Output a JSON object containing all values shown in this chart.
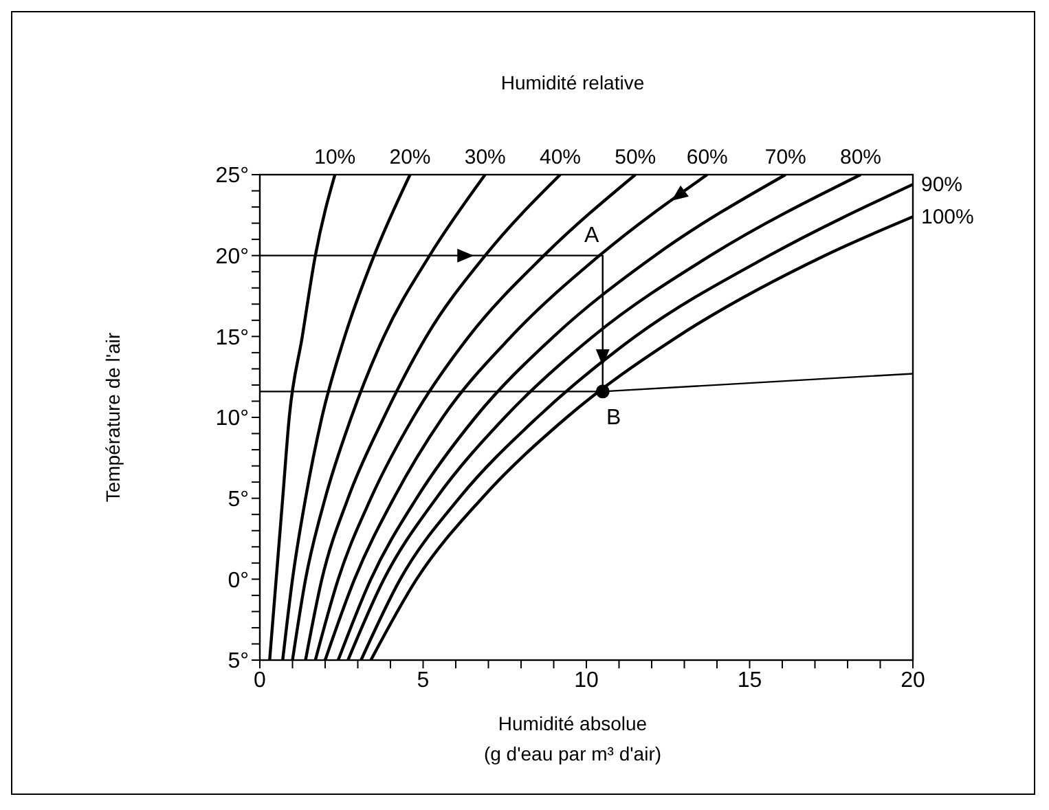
{
  "chart_data": {
    "type": "line",
    "title": "Humidité relative",
    "xlabel": "Humidité absolue\n(g d'eau par m³ d'air)",
    "ylabel": "Température de l'air",
    "xlim": [
      0,
      20
    ],
    "ylim": [
      -5,
      25
    ],
    "xticks": [
      0,
      {
        "value": 1,
        "label": null
      },
      {
        "value": 2,
        "label": null
      },
      {
        "value": 3,
        "label": null
      },
      {
        "value": 4,
        "label": null
      },
      5,
      {
        "value": 6,
        "label": null
      },
      {
        "value": 7,
        "label": null
      },
      {
        "value": 8,
        "label": null
      },
      {
        "value": 9,
        "label": null
      },
      10,
      {
        "value": 11,
        "label": null
      },
      {
        "value": 12,
        "label": null
      },
      {
        "value": 13,
        "label": null
      },
      {
        "value": 14,
        "label": null
      },
      15,
      {
        "value": 16,
        "label": null
      },
      {
        "value": 17,
        "label": null
      },
      {
        "value": 18,
        "label": null
      },
      {
        "value": 19,
        "label": null
      },
      20
    ],
    "yticks": [
      {
        "value": -5,
        "label": "5°"
      },
      {
        "value": -4,
        "label": null
      },
      {
        "value": -3,
        "label": null
      },
      {
        "value": -2,
        "label": null
      },
      {
        "value": -1,
        "label": null
      },
      {
        "value": 0,
        "label": "0°"
      },
      {
        "value": 1,
        "label": null
      },
      {
        "value": 2,
        "label": null
      },
      {
        "value": 3,
        "label": null
      },
      {
        "value": 4,
        "label": null
      },
      {
        "value": 5,
        "label": "5°"
      },
      {
        "value": 6,
        "label": null
      },
      {
        "value": 7,
        "label": null
      },
      {
        "value": 8,
        "label": null
      },
      {
        "value": 9,
        "label": null
      },
      {
        "value": 10,
        "label": "10°"
      },
      {
        "value": 11,
        "label": null
      },
      {
        "value": 12,
        "label": null
      },
      {
        "value": 13,
        "label": null
      },
      {
        "value": 14,
        "label": null
      },
      {
        "value": 15,
        "label": "15°"
      },
      {
        "value": 16,
        "label": null
      },
      {
        "value": 17,
        "label": null
      },
      {
        "value": 18,
        "label": null
      },
      {
        "value": 19,
        "label": null
      },
      {
        "value": 20,
        "label": "20°"
      },
      {
        "value": 21,
        "label": null
      },
      {
        "value": 22,
        "label": null
      },
      {
        "value": 23,
        "label": null
      },
      {
        "value": 24,
        "label": null
      },
      {
        "value": 25,
        "label": "25°"
      }
    ],
    "marker": "none",
    "series": [
      {
        "name": "10%",
        "color": "#000000",
        "x": [
          0.3,
          0.5,
          0.7,
          0.9,
          1.3,
          1.7,
          2.3
        ],
        "values": [
          -5,
          0,
          5,
          10,
          15,
          20,
          25
        ]
      },
      {
        "name": "20%",
        "color": "#000000",
        "x": [
          0.7,
          1.0,
          1.4,
          1.9,
          2.6,
          3.5,
          4.6
        ],
        "values": [
          -5,
          0,
          5,
          10,
          15,
          20,
          25
        ]
      },
      {
        "name": "30%",
        "color": "#000000",
        "x": [
          1.0,
          1.4,
          2.0,
          2.8,
          3.8,
          5.2,
          6.9
        ],
        "values": [
          -5,
          0,
          5,
          10,
          15,
          20,
          25
        ]
      },
      {
        "name": "40%",
        "color": "#000000",
        "x": [
          1.4,
          1.9,
          2.7,
          3.8,
          5.1,
          6.9,
          9.2
        ],
        "values": [
          -5,
          0,
          5,
          10,
          15,
          20,
          25
        ]
      },
      {
        "name": "50%",
        "color": "#000000",
        "x": [
          1.7,
          2.4,
          3.4,
          4.7,
          6.4,
          8.7,
          11.5
        ],
        "values": [
          -5,
          0,
          5,
          10,
          15,
          20,
          25
        ]
      },
      {
        "name": "60%",
        "color": "#000000",
        "x": [
          2.0,
          2.9,
          4.1,
          5.6,
          7.7,
          10.4,
          13.7
        ],
        "values": [
          -5,
          0,
          5,
          10,
          15,
          20,
          25
        ]
      },
      {
        "name": "70%",
        "color": "#000000",
        "x": [
          2.4,
          3.4,
          4.8,
          6.6,
          9.0,
          12.1,
          16.1
        ],
        "values": [
          -5,
          0,
          5,
          10,
          15,
          20,
          25
        ]
      },
      {
        "name": "80%",
        "color": "#000000",
        "x": [
          2.7,
          3.8,
          5.4,
          7.5,
          10.2,
          13.8,
          18.4
        ],
        "values": [
          -5,
          0,
          5,
          10,
          15,
          20,
          25
        ]
      },
      {
        "name": "90%",
        "color": "#000000",
        "x": [
          3.1,
          4.3,
          6.1,
          8.5,
          11.5,
          15.6,
          20
        ],
        "values": [
          -5,
          0,
          5,
          10,
          15,
          20,
          24.4
        ]
      },
      {
        "name": "100%",
        "color": "#000000",
        "x": [
          3.4,
          4.8,
          6.8,
          9.4,
          12.8,
          17.3,
          20
        ],
        "values": [
          -5,
          0,
          5,
          10,
          15,
          20,
          22.4
        ]
      },
      {
        "type": "line",
        "color": "#000000",
        "x": [
          0,
          10.5,
          10.5
        ],
        "values": [
          20,
          20,
          11.6
        ]
      },
      {
        "type": "line",
        "color": "#000000",
        "x": [
          0,
          10.5,
          20
        ],
        "values": [
          11.6,
          11.6,
          12.7
        ]
      },
      {
        "type": "scatter",
        "color": "#000000",
        "marker": "circle",
        "x": [
          10.5
        ],
        "values": [
          11.6
        ]
      }
    ],
    "annotations": [
      {
        "text": "A",
        "x": 10.5,
        "y": 20
      },
      {
        "text": "B",
        "x": 10.5,
        "y": 11.6
      }
    ]
  }
}
